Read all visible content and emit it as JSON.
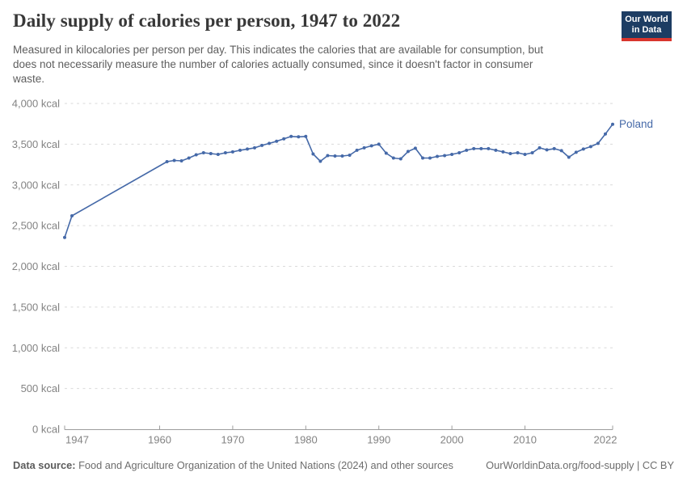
{
  "header": {
    "title": "Daily supply of calories per person, 1947 to 2022",
    "subtitle_lines": [
      "Measured in kilocalories per person per day. This indicates the calories that are available for consumption, but",
      "does not necessarily measure the number of calories actually consumed, since it doesn't factor in consumer",
      "waste."
    ],
    "logo": {
      "line1": "Our World",
      "line2": "in Data",
      "bg_color": "#1d3d63",
      "bar_color": "#d9352d"
    }
  },
  "chart_data": {
    "type": "line",
    "title": "Daily supply of calories per person, 1947 to 2022",
    "entity": "Poland",
    "unit": "kcal",
    "xlabel": "",
    "ylabel": "",
    "xlim": [
      1947,
      2022
    ],
    "ylim": [
      0,
      4000
    ],
    "grid": "horizontal-dashed",
    "legend": "end-of-line-label",
    "colors": {
      "line": "#4569a8",
      "gridline": "#dadada",
      "axis": "#9c9c9c",
      "tick_text": "#838383"
    },
    "y_ticks": [
      {
        "value": 0,
        "label": "0 kcal"
      },
      {
        "value": 500,
        "label": "500 kcal"
      },
      {
        "value": 1000,
        "label": "1,000 kcal"
      },
      {
        "value": 1500,
        "label": "1,500 kcal"
      },
      {
        "value": 2000,
        "label": "2,000 kcal"
      },
      {
        "value": 2500,
        "label": "2,500 kcal"
      },
      {
        "value": 3000,
        "label": "3,000 kcal"
      },
      {
        "value": 3500,
        "label": "3,500 kcal"
      },
      {
        "value": 4000,
        "label": "4,000 kcal"
      }
    ],
    "x_ticks": [
      {
        "value": 1947,
        "label": "1947"
      },
      {
        "value": 1960,
        "label": "1960"
      },
      {
        "value": 1970,
        "label": "1970"
      },
      {
        "value": 1980,
        "label": "1980"
      },
      {
        "value": 1990,
        "label": "1990"
      },
      {
        "value": 2000,
        "label": "2000"
      },
      {
        "value": 2010,
        "label": "2010"
      },
      {
        "value": 2022,
        "label": "2022"
      }
    ],
    "series": [
      {
        "name": "Poland",
        "color": "#4569a8",
        "points": [
          [
            1947,
            2355
          ],
          [
            1948,
            2620
          ],
          [
            1961,
            3285
          ],
          [
            1962,
            3300
          ],
          [
            1963,
            3295
          ],
          [
            1964,
            3330
          ],
          [
            1965,
            3370
          ],
          [
            1966,
            3395
          ],
          [
            1967,
            3385
          ],
          [
            1968,
            3375
          ],
          [
            1969,
            3395
          ],
          [
            1970,
            3405
          ],
          [
            1971,
            3425
          ],
          [
            1972,
            3440
          ],
          [
            1973,
            3455
          ],
          [
            1974,
            3485
          ],
          [
            1975,
            3510
          ],
          [
            1976,
            3535
          ],
          [
            1977,
            3565
          ],
          [
            1978,
            3595
          ],
          [
            1979,
            3590
          ],
          [
            1980,
            3595
          ],
          [
            1981,
            3380
          ],
          [
            1982,
            3290
          ],
          [
            1983,
            3360
          ],
          [
            1984,
            3355
          ],
          [
            1985,
            3355
          ],
          [
            1986,
            3365
          ],
          [
            1987,
            3425
          ],
          [
            1988,
            3455
          ],
          [
            1989,
            3480
          ],
          [
            1990,
            3500
          ],
          [
            1991,
            3390
          ],
          [
            1992,
            3330
          ],
          [
            1993,
            3320
          ],
          [
            1994,
            3410
          ],
          [
            1995,
            3450
          ],
          [
            1996,
            3330
          ],
          [
            1997,
            3330
          ],
          [
            1998,
            3350
          ],
          [
            1999,
            3360
          ],
          [
            2000,
            3375
          ],
          [
            2001,
            3395
          ],
          [
            2002,
            3425
          ],
          [
            2003,
            3445
          ],
          [
            2004,
            3445
          ],
          [
            2005,
            3445
          ],
          [
            2006,
            3425
          ],
          [
            2007,
            3405
          ],
          [
            2008,
            3385
          ],
          [
            2009,
            3395
          ],
          [
            2010,
            3375
          ],
          [
            2011,
            3395
          ],
          [
            2012,
            3455
          ],
          [
            2013,
            3430
          ],
          [
            2014,
            3445
          ],
          [
            2015,
            3420
          ],
          [
            2016,
            3340
          ],
          [
            2017,
            3400
          ],
          [
            2018,
            3440
          ],
          [
            2019,
            3470
          ],
          [
            2020,
            3510
          ],
          [
            2021,
            3625
          ],
          [
            2022,
            3745
          ]
        ]
      }
    ]
  },
  "footer": {
    "source_label": "Data source:",
    "source_text": " Food and Agriculture Organization of the United Nations (2024) and other sources",
    "link_text": "OurWorldinData.org/food-supply",
    "license_text": " | CC BY"
  }
}
